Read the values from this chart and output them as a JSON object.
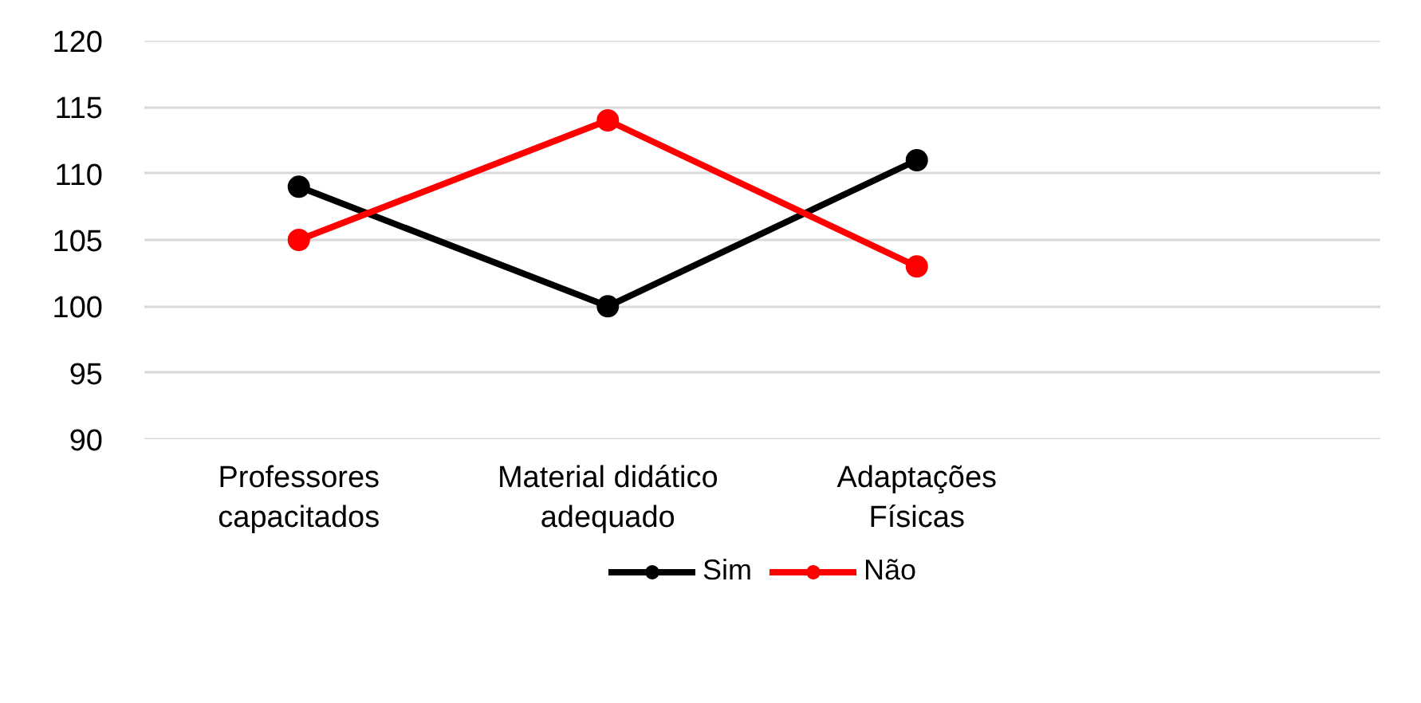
{
  "chart_data": {
    "type": "line",
    "categories": [
      "Professores capacitados",
      "Material didático adequado",
      "Adaptações Físicas",
      null
    ],
    "series": [
      {
        "name": "Sim",
        "color": "#000000",
        "values": [
          109,
          100,
          111,
          null
        ]
      },
      {
        "name": "Não",
        "color": "#ff0000",
        "values": [
          105,
          114,
          103,
          null
        ]
      }
    ],
    "ylim": [
      90,
      120
    ],
    "yticks": [
      90,
      95,
      100,
      105,
      110,
      115,
      120
    ],
    "grid": "y",
    "legend": "bottom",
    "marker": "circle",
    "line_style": "solid"
  }
}
